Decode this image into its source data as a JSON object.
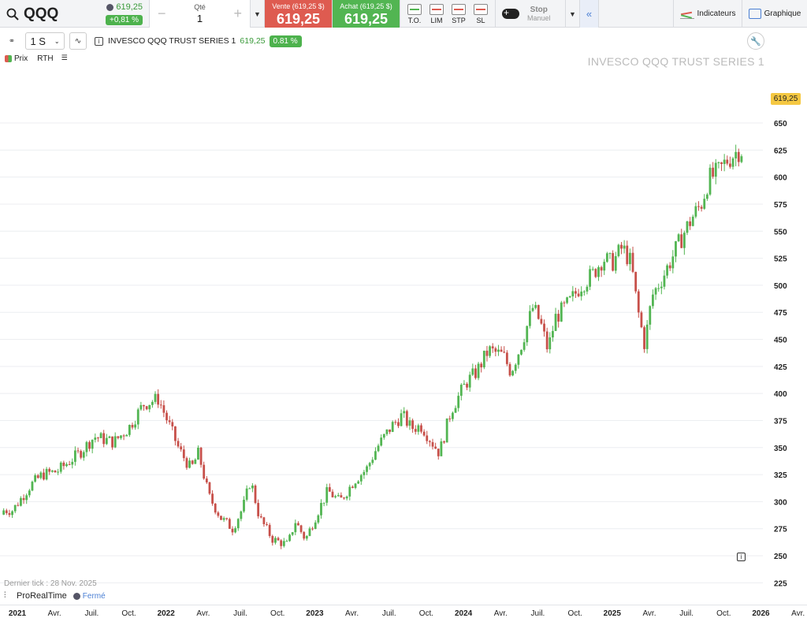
{
  "header": {
    "symbol": "QQQ",
    "price": "619,25",
    "change": "+0,81 %",
    "qty_label": "Qté",
    "qty_value": "1",
    "sell_label": "Vente (619,25 $)",
    "sell_price": "619,25",
    "buy_label": "Achat (619,25 $)",
    "buy_price": "619,25",
    "order_types": [
      "T.O.",
      "LIM",
      "STP",
      "SL"
    ],
    "stop_label": "Stop",
    "stop_sub": "Manuel",
    "indicators_label": "Indicateurs",
    "chart_label": "Graphique"
  },
  "toolbar": {
    "timeframe": "1 S",
    "instrument_name": "INVESCO QQQ TRUST SERIES 1",
    "instrument_price": "619,25",
    "instrument_change": "0.81 %"
  },
  "legend": {
    "price_label": "Prix",
    "rth_label": "RTH"
  },
  "watermark": "INVESCO QQQ TRUST SERIES 1",
  "last_price_tag": "619,25",
  "footer": {
    "last_tick": "Dernier tick : 28 Nov. 2025",
    "provider": "ProRealTime",
    "market_status": "Fermé"
  },
  "colors": {
    "up": "#52b552",
    "down": "#c7504a",
    "sell": "#de5b50",
    "buy": "#52b552",
    "accent": "#4a7fd4"
  },
  "icons": [
    "search-icon",
    "globe-icon",
    "chevron-down-icon",
    "collapse-icon",
    "indicators-icon",
    "chart-icon",
    "wrench-icon",
    "info-icon",
    "list-icon"
  ],
  "chart_data": {
    "type": "candlestick",
    "title": "INVESCO QQQ TRUST SERIES 1",
    "y_ticks": [
      225,
      250,
      275,
      300,
      325,
      350,
      375,
      400,
      425,
      450,
      475,
      500,
      525,
      550,
      575,
      600,
      625,
      650
    ],
    "ylim": [
      215,
      655
    ],
    "x_ticks": [
      {
        "label": "2021",
        "t": 0.0,
        "year": true
      },
      {
        "label": "Avr.",
        "t": 0.25
      },
      {
        "label": "Juil.",
        "t": 0.5
      },
      {
        "label": "Oct.",
        "t": 0.75
      },
      {
        "label": "2022",
        "t": 1.0,
        "year": true
      },
      {
        "label": "Avr.",
        "t": 1.25
      },
      {
        "label": "Juil.",
        "t": 1.5
      },
      {
        "label": "Oct.",
        "t": 1.75
      },
      {
        "label": "2023",
        "t": 2.0,
        "year": true
      },
      {
        "label": "Avr.",
        "t": 2.25
      },
      {
        "label": "Juil.",
        "t": 2.5
      },
      {
        "label": "Oct.",
        "t": 2.75
      },
      {
        "label": "2024",
        "t": 3.0,
        "year": true
      },
      {
        "label": "Avr.",
        "t": 3.25
      },
      {
        "label": "Juil.",
        "t": 3.5
      },
      {
        "label": "Oct.",
        "t": 3.75
      },
      {
        "label": "2025",
        "t": 4.0,
        "year": true
      },
      {
        "label": "Avr.",
        "t": 4.25
      },
      {
        "label": "Juil.",
        "t": 4.5
      },
      {
        "label": "Oct.",
        "t": 4.75
      },
      {
        "label": "2026",
        "t": 5.0,
        "year": true
      },
      {
        "label": "Avr.",
        "t": 5.25
      }
    ],
    "last_price": 619.25,
    "close_anchors": [
      [
        0.0,
        292
      ],
      [
        0.12,
        315
      ],
      [
        0.2,
        325
      ],
      [
        0.3,
        328
      ],
      [
        0.45,
        345
      ],
      [
        0.55,
        360
      ],
      [
        0.68,
        355
      ],
      [
        0.78,
        368
      ],
      [
        0.88,
        390
      ],
      [
        0.98,
        395
      ],
      [
        1.04,
        375
      ],
      [
        1.12,
        348
      ],
      [
        1.2,
        330
      ],
      [
        1.25,
        345
      ],
      [
        1.32,
        305
      ],
      [
        1.4,
        285
      ],
      [
        1.48,
        275
      ],
      [
        1.55,
        295
      ],
      [
        1.6,
        320
      ],
      [
        1.66,
        285
      ],
      [
        1.75,
        265
      ],
      [
        1.85,
        260
      ],
      [
        1.9,
        282
      ],
      [
        1.97,
        265
      ],
      [
        2.05,
        290
      ],
      [
        2.12,
        310
      ],
      [
        2.2,
        300
      ],
      [
        2.3,
        320
      ],
      [
        2.38,
        330
      ],
      [
        2.45,
        350
      ],
      [
        2.55,
        370
      ],
      [
        2.62,
        380
      ],
      [
        2.68,
        368
      ],
      [
        2.75,
        370
      ],
      [
        2.82,
        355
      ],
      [
        2.87,
        345
      ],
      [
        2.95,
        385
      ],
      [
        3.05,
        410
      ],
      [
        3.12,
        420
      ],
      [
        3.2,
        440
      ],
      [
        3.3,
        435
      ],
      [
        3.35,
        420
      ],
      [
        3.42,
        445
      ],
      [
        3.5,
        480
      ],
      [
        3.55,
        465
      ],
      [
        3.6,
        440
      ],
      [
        3.65,
        470
      ],
      [
        3.75,
        485
      ],
      [
        3.82,
        500
      ],
      [
        3.9,
        510
      ],
      [
        3.97,
        525
      ],
      [
        4.03,
        520
      ],
      [
        4.1,
        535
      ],
      [
        4.16,
        520
      ],
      [
        4.2,
        480
      ],
      [
        4.25,
        445
      ],
      [
        4.3,
        490
      ],
      [
        4.38,
        510
      ],
      [
        4.45,
        530
      ],
      [
        4.52,
        550
      ],
      [
        4.58,
        565
      ],
      [
        4.63,
        575
      ],
      [
        4.68,
        598
      ],
      [
        4.75,
        605
      ],
      [
        4.8,
        615
      ],
      [
        4.88,
        625
      ],
      [
        4.92,
        619.25
      ]
    ]
  }
}
